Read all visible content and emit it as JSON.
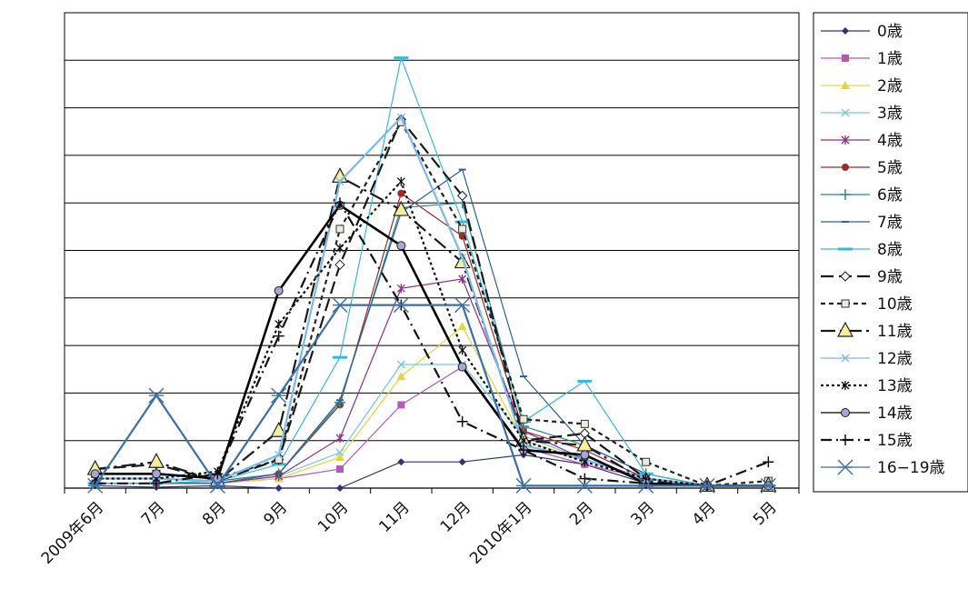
{
  "chart_data": {
    "type": "line",
    "title": "",
    "xlabel": "",
    "ylabel": "",
    "categories": [
      "2009年6月",
      "7月",
      "8月",
      "9月",
      "10月",
      "11月",
      "12月",
      "2010年1月",
      "2月",
      "3月",
      "4月",
      "5月"
    ],
    "ylim": [
      0,
      10
    ],
    "y_tick_labels_shown": false,
    "grid": "horizontal",
    "legend_position": "right",
    "series": [
      {
        "name": "0歳",
        "color": "#2e3575",
        "dash": "",
        "marker": "diamond",
        "values": [
          0.05,
          0.02,
          0.05,
          0.0,
          0.0,
          0.55,
          0.55,
          0.7,
          0.5,
          0.1,
          0.05,
          0.05
        ]
      },
      {
        "name": "1歳",
        "color": "#b05cb5",
        "dash": "",
        "marker": "square",
        "values": [
          0.1,
          0.1,
          0.1,
          0.2,
          0.4,
          1.75,
          2.55,
          0.85,
          0.5,
          0.2,
          0.05,
          0.05
        ]
      },
      {
        "name": "2歳",
        "color": "#e3d640",
        "dash": "",
        "marker": "triangle",
        "values": [
          0.1,
          0.1,
          0.1,
          0.2,
          0.65,
          2.35,
          3.4,
          1.0,
          0.6,
          0.2,
          0.05,
          0.05
        ]
      },
      {
        "name": "3歳",
        "color": "#77c6df",
        "dash": "",
        "marker": "x",
        "values": [
          0.1,
          0.1,
          0.1,
          0.25,
          0.75,
          2.6,
          2.6,
          1.1,
          0.6,
          0.2,
          0.05,
          0.05
        ]
      },
      {
        "name": "4歳",
        "color": "#8e2f86",
        "dash": "",
        "marker": "star",
        "values": [
          0.1,
          0.1,
          0.1,
          0.25,
          1.05,
          4.2,
          4.4,
          1.2,
          0.6,
          0.2,
          0.05,
          0.05
        ]
      },
      {
        "name": "5歳",
        "color": "#9e2a2a",
        "dash": "",
        "marker": "circle",
        "values": [
          0.1,
          0.1,
          0.15,
          0.3,
          1.75,
          6.2,
          5.3,
          1.2,
          0.8,
          0.2,
          0.05,
          0.05
        ]
      },
      {
        "name": "6歳",
        "color": "#2f8a86",
        "dash": "",
        "marker": "plus",
        "values": [
          0.1,
          0.1,
          0.15,
          0.3,
          1.8,
          5.9,
          6.0,
          1.3,
          0.9,
          0.3,
          0.05,
          0.05
        ]
      },
      {
        "name": "7歳",
        "color": "#2e5f96",
        "dash": "",
        "marker": "hdash",
        "values": [
          0.1,
          0.1,
          0.1,
          0.3,
          1.85,
          5.8,
          6.7,
          2.35,
          0.9,
          0.3,
          0.05,
          0.05
        ]
      },
      {
        "name": "8歳",
        "color": "#39b8d8",
        "dash": "",
        "marker": "bar",
        "values": [
          0.1,
          0.1,
          0.15,
          0.5,
          2.75,
          9.05,
          5.6,
          1.4,
          2.25,
          0.3,
          0.05,
          0.05
        ]
      },
      {
        "name": "9歳",
        "color": "#1a1a1a",
        "dash": "14,6",
        "marker": "diamond-open",
        "values": [
          0.4,
          0.5,
          0.15,
          0.6,
          4.7,
          7.75,
          6.15,
          1.0,
          1.15,
          0.2,
          0.05,
          0.05
        ]
      },
      {
        "name": "10歳",
        "color": "#222222",
        "dash": "5,4",
        "marker": "square-open",
        "values": [
          0.3,
          0.3,
          0.2,
          0.6,
          5.45,
          7.7,
          5.45,
          1.45,
          1.35,
          0.55,
          0.05,
          0.15
        ]
      },
      {
        "name": "11歳",
        "color": "#1a1a1a",
        "dash": "16,5,3,5",
        "marker": "triangle-open",
        "values": [
          0.4,
          0.55,
          0.15,
          1.2,
          6.55,
          5.85,
          4.75,
          1.0,
          0.9,
          0.15,
          0.05,
          0.05
        ]
      },
      {
        "name": "12歳",
        "color": "#7cb9e8",
        "dash": "",
        "marker": "x",
        "values": [
          0.2,
          0.2,
          0.15,
          0.7,
          6.45,
          7.8,
          4.85,
          0.9,
          0.6,
          0.2,
          0.05,
          0.05
        ]
      },
      {
        "name": "13歳",
        "color": "#111111",
        "dash": "3,3",
        "marker": "star",
        "values": [
          0.2,
          0.2,
          0.35,
          3.45,
          5.05,
          6.45,
          2.9,
          1.0,
          0.55,
          0.2,
          0.05,
          0.05
        ]
      },
      {
        "name": "14歳",
        "color": "#000000",
        "dash": "",
        "marker": "circle-open",
        "values": [
          0.3,
          0.3,
          0.2,
          4.15,
          5.95,
          5.1,
          2.55,
          0.8,
          0.7,
          0.1,
          0.05,
          0.05
        ]
      },
      {
        "name": "15歳",
        "color": "#111111",
        "dash": "12,5,2,5",
        "marker": "plus",
        "values": [
          0.1,
          0.1,
          0.3,
          3.2,
          6.0,
          3.85,
          1.4,
          0.8,
          0.2,
          0.1,
          0.05,
          0.55
        ]
      },
      {
        "name": "16−19歳",
        "color": "#3c6ea8",
        "dash": "",
        "marker": "asterisk",
        "values": [
          0.05,
          1.95,
          0.05,
          1.95,
          3.85,
          3.85,
          3.85,
          0.05,
          0.05,
          0.05,
          0.05,
          0.05
        ]
      }
    ]
  }
}
